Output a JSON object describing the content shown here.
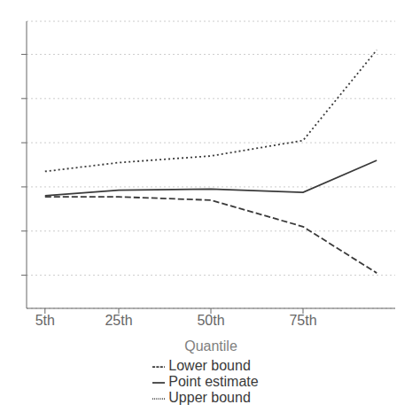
{
  "chart_data": {
    "type": "line",
    "x": [
      5,
      25,
      50,
      75,
      95
    ],
    "xlabel": "Quantile",
    "xlim": [
      0,
      100
    ],
    "xticks": [
      {
        "value": 5,
        "label": "5th"
      },
      {
        "value": 25,
        "label": "25th"
      },
      {
        "value": 50,
        "label": "50th"
      },
      {
        "value": 75,
        "label": "75th"
      }
    ],
    "ylim": [
      -0.35,
      0.95
    ],
    "yticks": [
      -0.2,
      0.0,
      0.2,
      0.4,
      0.6,
      0.8
    ],
    "tick_labels": "x",
    "grid": true,
    "legend": "bottom",
    "series": [
      {
        "name": "Upper bound",
        "color": "#3a3a3a",
        "line_style": "dotted",
        "values": [
          0.27,
          0.31,
          0.34,
          0.41,
          0.82
        ]
      },
      {
        "name": "Point estimate",
        "color": "#3a3a3a",
        "line_style": "solid",
        "values": [
          0.16,
          0.185,
          0.19,
          0.175,
          0.32
        ]
      },
      {
        "name": "Lower bound",
        "color": "#3a3a3a",
        "line_style": "dashed",
        "values": [
          0.155,
          0.155,
          0.14,
          0.02,
          -0.19
        ]
      }
    ]
  }
}
